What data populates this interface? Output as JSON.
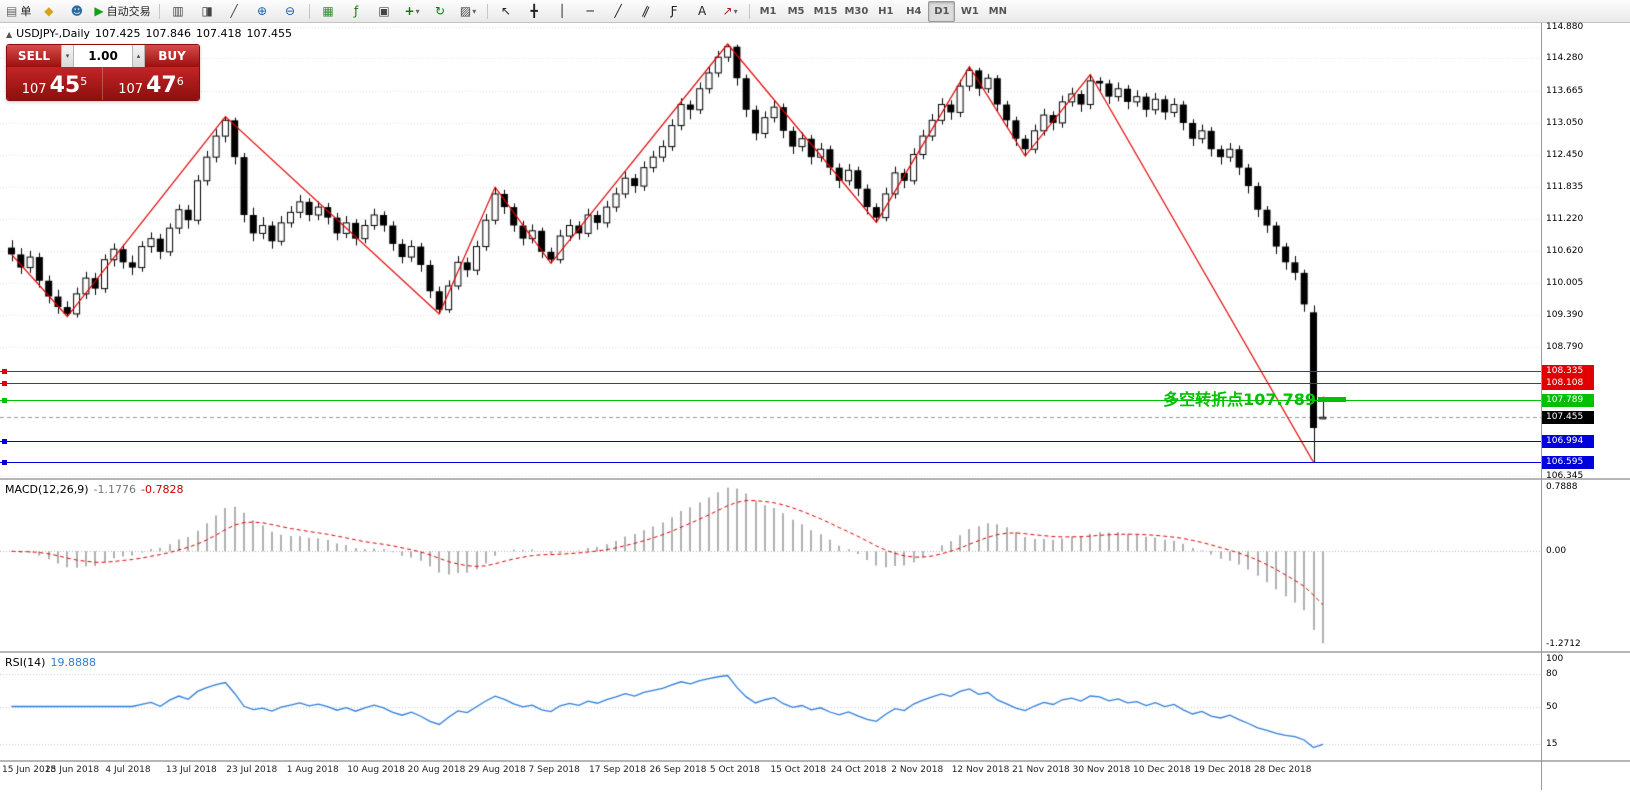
{
  "toolbar": {
    "order_button": {
      "name": "new-order",
      "icon": "document",
      "label": "单"
    },
    "left_icons": [
      {
        "name": "chart-profile",
        "icon": "gold-square"
      },
      {
        "name": "accounts",
        "icon": "blue-person"
      }
    ],
    "autotrading": {
      "name": "autotrading",
      "icon": "green-play",
      "label": "自动交易"
    },
    "chart_buttons": [
      {
        "name": "bar-chart",
        "icon": "bars"
      },
      {
        "name": "candlestick-chart",
        "icon": "candles"
      },
      {
        "name": "line-chart",
        "icon": "line"
      }
    ],
    "zoom_buttons": [
      {
        "name": "zoom-in",
        "icon": "zoom-plus"
      },
      {
        "name": "zoom-out",
        "icon": "zoom-minus"
      }
    ],
    "misc_buttons": [
      {
        "name": "grid",
        "icon": "grid-green"
      },
      {
        "name": "indicators",
        "icon": "function"
      },
      {
        "name": "tile-windows",
        "icon": "tile"
      },
      {
        "name": "new-chart",
        "icon": "plus-chart",
        "dropdown": true
      },
      {
        "name": "auto-scroll",
        "icon": "refresh"
      },
      {
        "name": "templates",
        "icon": "template",
        "dropdown": true
      }
    ],
    "draw_buttons": [
      {
        "name": "cursor",
        "icon": "cursor-arrow"
      },
      {
        "name": "crosshair",
        "icon": "crosshair"
      },
      {
        "name": "vertical-line",
        "icon": "vline"
      },
      {
        "name": "horizontal-line",
        "icon": "hline"
      },
      {
        "name": "trendline",
        "icon": "diag"
      },
      {
        "name": "channel",
        "icon": "channel"
      },
      {
        "name": "fibonacci",
        "icon": "fibo"
      },
      {
        "name": "text-label",
        "icon": "letter-a"
      },
      {
        "name": "arrows",
        "icon": "arrow-ne",
        "dropdown": true
      }
    ],
    "timeframes": [
      "M1",
      "M5",
      "M15",
      "M30",
      "H1",
      "H4",
      "D1",
      "W1",
      "MN"
    ],
    "active_timeframe": "D1"
  },
  "icons_legend": {
    "document": "page glyph",
    "gold-square": "gold diamond",
    "blue-person": "person glyph",
    "green-play": "play triangle",
    "bars": "ohlc bars",
    "candles": "candlesticks",
    "line": "line chart",
    "zoom-plus": "magnifier plus",
    "zoom-minus": "magnifier minus",
    "grid-green": "grid",
    "function": "indicator f",
    "tile": "tile windows",
    "plus-chart": "new chart plus",
    "refresh": "auto scroll",
    "template": "chart template",
    "cursor-arrow": "pointer",
    "crosshair": "crosshair",
    "vline": "vertical line",
    "hline": "horizontal line",
    "diag": "trend line",
    "channel": "equidistant channel",
    "fibo": "fibonacci",
    "letter-a": "text tool",
    "arrow-ne": "arrow objects"
  },
  "symbol_header": {
    "collapse": "▲",
    "symbol": "USDJPY-,Daily",
    "open": "107.425",
    "high": "107.846",
    "low": "107.418",
    "close": "107.455"
  },
  "one_click": {
    "sell_label": "SELL",
    "buy_label": "BUY",
    "volume": "1.00",
    "bid": {
      "big": "107",
      "pips": "45",
      "sup": "5"
    },
    "ask": {
      "big": "107",
      "pips": "47",
      "sup": "6"
    }
  },
  "annotation": {
    "text": "多空转折点107.789",
    "color": "#00c000"
  },
  "price_axis": {
    "labels": [
      "114.880",
      "114.280",
      "113.665",
      "113.050",
      "112.450",
      "111.835",
      "111.220",
      "110.620",
      "110.005",
      "109.390",
      "108.790",
      "106.345"
    ]
  },
  "horizontal_lines": [
    {
      "price": 108.335,
      "color": "#e00000",
      "tag": "108.335"
    },
    {
      "price": 108.108,
      "color": "#e00000",
      "tag": "108.108"
    },
    {
      "price": 107.789,
      "color": "#00c000",
      "tag": "107.789"
    },
    {
      "price": 106.994,
      "color": "#0000dd",
      "tag": "106.994"
    },
    {
      "price": 106.595,
      "color": "#0000dd",
      "tag": "106.595"
    }
  ],
  "current_price_tag": {
    "price": 107.455,
    "label": "107.455",
    "color": "#000000"
  },
  "macd_panel": {
    "title": "MACD(12,26,9)",
    "value_main": "-1.1776",
    "value_signal": "-0.7828",
    "axis_labels": [
      "0.7888",
      "0.00",
      "-1.2712"
    ],
    "fast": 12,
    "slow": 26,
    "signal": 9
  },
  "rsi_panel": {
    "title": "RSI(14)",
    "value": "19.8888",
    "period": 14,
    "axis_labels": [
      100,
      80,
      50,
      15
    ],
    "levels": [
      80,
      50,
      15
    ]
  },
  "dates": [
    "15 Jun 2018",
    "25 Jun 2018",
    "4 Jul 2018",
    "13 Jul 2018",
    "23 Jul 2018",
    "1 Aug 2018",
    "10 Aug 2018",
    "20 Aug 2018",
    "29 Aug 2018",
    "7 Sep 2018",
    "17 Sep 2018",
    "26 Sep 2018",
    "5 Oct 2018",
    "15 Oct 2018",
    "24 Oct 2018",
    "2 Nov 2018",
    "12 Nov 2018",
    "21 Nov 2018",
    "30 Nov 2018",
    "10 Dec 2018",
    "19 Dec 2018",
    "28 Dec 2018"
  ],
  "chart_data": {
    "type": "candlestick",
    "symbol": "USDJPY-",
    "timeframe": "Daily",
    "ylim": [
      106.3,
      114.95
    ],
    "zigzag_pivots": [
      [
        0,
        110.55
      ],
      [
        6,
        109.37
      ],
      [
        23,
        113.17
      ],
      [
        46,
        109.42
      ],
      [
        52,
        111.83
      ],
      [
        58,
        110.38
      ],
      [
        77,
        114.55
      ],
      [
        93,
        111.16
      ],
      [
        103,
        114.12
      ],
      [
        109,
        112.42
      ],
      [
        116,
        113.97
      ],
      [
        140,
        106.6
      ]
    ],
    "candles": [
      [
        110.68,
        110.82,
        110.42,
        110.55
      ],
      [
        110.55,
        110.67,
        110.18,
        110.3
      ],
      [
        110.3,
        110.62,
        110.2,
        110.5
      ],
      [
        110.5,
        110.58,
        109.92,
        110.05
      ],
      [
        110.05,
        110.15,
        109.62,
        109.75
      ],
      [
        109.75,
        109.88,
        109.42,
        109.55
      ],
      [
        109.55,
        109.66,
        109.37,
        109.42
      ],
      [
        109.42,
        109.92,
        109.35,
        109.8
      ],
      [
        109.8,
        110.22,
        109.7,
        110.1
      ],
      [
        110.1,
        110.2,
        109.78,
        109.9
      ],
      [
        109.9,
        110.55,
        109.82,
        110.45
      ],
      [
        110.45,
        110.76,
        110.32,
        110.65
      ],
      [
        110.65,
        110.74,
        110.28,
        110.4
      ],
      [
        110.4,
        110.53,
        110.16,
        110.3
      ],
      [
        110.3,
        110.8,
        110.22,
        110.7
      ],
      [
        110.7,
        110.97,
        110.58,
        110.85
      ],
      [
        110.85,
        110.94,
        110.46,
        110.6
      ],
      [
        110.6,
        111.14,
        110.52,
        111.05
      ],
      [
        111.05,
        111.5,
        110.94,
        111.4
      ],
      [
        111.4,
        111.49,
        111.04,
        111.2
      ],
      [
        111.2,
        112.06,
        111.12,
        111.95
      ],
      [
        111.95,
        112.52,
        111.86,
        112.4
      ],
      [
        112.4,
        112.93,
        112.3,
        112.8
      ],
      [
        112.8,
        113.17,
        112.68,
        113.1
      ],
      [
        113.1,
        113.15,
        112.26,
        112.4
      ],
      [
        112.4,
        112.48,
        111.16,
        111.3
      ],
      [
        111.3,
        111.44,
        110.8,
        110.95
      ],
      [
        110.95,
        111.26,
        110.84,
        111.1
      ],
      [
        111.1,
        111.18,
        110.66,
        110.8
      ],
      [
        110.8,
        111.28,
        110.72,
        111.15
      ],
      [
        111.15,
        111.47,
        111.06,
        111.35
      ],
      [
        111.35,
        111.68,
        111.24,
        111.55
      ],
      [
        111.55,
        111.62,
        111.18,
        111.3
      ],
      [
        111.3,
        111.56,
        111.2,
        111.45
      ],
      [
        111.45,
        111.53,
        111.12,
        111.25
      ],
      [
        111.25,
        111.34,
        110.82,
        110.95
      ],
      [
        110.95,
        111.28,
        110.86,
        111.15
      ],
      [
        111.15,
        111.22,
        110.72,
        110.85
      ],
      [
        110.85,
        111.21,
        110.76,
        111.1
      ],
      [
        111.1,
        111.42,
        111.02,
        111.3
      ],
      [
        111.3,
        111.37,
        110.98,
        111.1
      ],
      [
        111.1,
        111.18,
        110.62,
        110.75
      ],
      [
        110.75,
        110.84,
        110.38,
        110.5
      ],
      [
        110.5,
        110.82,
        110.41,
        110.7
      ],
      [
        110.7,
        110.77,
        110.22,
        110.35
      ],
      [
        110.35,
        110.44,
        109.72,
        109.85
      ],
      [
        109.85,
        109.94,
        109.42,
        109.5
      ],
      [
        109.5,
        110.06,
        109.44,
        109.95
      ],
      [
        109.95,
        110.52,
        109.88,
        110.4
      ],
      [
        110.4,
        110.49,
        110.12,
        110.25
      ],
      [
        110.25,
        110.81,
        110.16,
        110.7
      ],
      [
        110.7,
        111.32,
        110.62,
        111.2
      ],
      [
        111.2,
        111.83,
        111.12,
        111.7
      ],
      [
        111.7,
        111.78,
        111.32,
        111.45
      ],
      [
        111.45,
        111.52,
        110.98,
        111.1
      ],
      [
        111.1,
        111.19,
        110.72,
        110.85
      ],
      [
        110.85,
        111.12,
        110.76,
        111.0
      ],
      [
        111.0,
        111.06,
        110.48,
        110.6
      ],
      [
        110.6,
        110.68,
        110.38,
        110.45
      ],
      [
        110.45,
        111.02,
        110.38,
        110.9
      ],
      [
        110.9,
        111.22,
        110.81,
        111.1
      ],
      [
        111.1,
        111.18,
        110.83,
        110.95
      ],
      [
        110.95,
        111.42,
        110.88,
        111.3
      ],
      [
        111.3,
        111.38,
        111.02,
        111.15
      ],
      [
        111.15,
        111.57,
        111.06,
        111.45
      ],
      [
        111.45,
        111.82,
        111.36,
        111.7
      ],
      [
        111.7,
        112.12,
        111.62,
        112.0
      ],
      [
        112.0,
        112.08,
        111.72,
        111.85
      ],
      [
        111.85,
        112.32,
        111.76,
        112.2
      ],
      [
        112.2,
        112.52,
        112.11,
        112.4
      ],
      [
        112.4,
        112.72,
        112.31,
        112.6
      ],
      [
        112.6,
        113.12,
        112.52,
        113.0
      ],
      [
        113.0,
        113.52,
        112.91,
        113.4
      ],
      [
        113.4,
        113.48,
        113.12,
        113.3
      ],
      [
        113.3,
        113.82,
        113.22,
        113.7
      ],
      [
        113.7,
        114.12,
        113.61,
        114.0
      ],
      [
        114.0,
        114.42,
        113.92,
        114.3
      ],
      [
        114.3,
        114.55,
        114.21,
        114.5
      ],
      [
        114.5,
        114.54,
        113.76,
        113.9
      ],
      [
        113.9,
        113.97,
        113.16,
        113.3
      ],
      [
        113.3,
        113.38,
        112.72,
        112.85
      ],
      [
        112.85,
        113.27,
        112.76,
        113.15
      ],
      [
        113.15,
        113.47,
        113.06,
        113.35
      ],
      [
        113.35,
        113.42,
        112.76,
        112.9
      ],
      [
        112.9,
        112.98,
        112.46,
        112.6
      ],
      [
        112.6,
        112.87,
        112.51,
        112.75
      ],
      [
        112.75,
        112.82,
        112.26,
        112.4
      ],
      [
        112.4,
        112.67,
        112.31,
        112.55
      ],
      [
        112.55,
        112.62,
        112.06,
        112.2
      ],
      [
        112.2,
        112.28,
        111.81,
        111.95
      ],
      [
        111.95,
        112.27,
        111.86,
        112.15
      ],
      [
        112.15,
        112.22,
        111.66,
        111.8
      ],
      [
        111.8,
        111.88,
        111.31,
        111.45
      ],
      [
        111.45,
        111.52,
        111.16,
        111.25
      ],
      [
        111.25,
        111.82,
        111.18,
        111.7
      ],
      [
        111.7,
        112.22,
        111.61,
        112.1
      ],
      [
        112.1,
        112.18,
        111.81,
        111.95
      ],
      [
        111.95,
        112.57,
        111.88,
        112.45
      ],
      [
        112.45,
        112.92,
        112.36,
        112.8
      ],
      [
        112.8,
        113.22,
        112.71,
        113.1
      ],
      [
        113.1,
        113.52,
        113.02,
        113.4
      ],
      [
        113.4,
        113.48,
        113.11,
        113.25
      ],
      [
        113.25,
        113.87,
        113.16,
        113.75
      ],
      [
        113.75,
        114.12,
        113.66,
        114.05
      ],
      [
        114.05,
        114.1,
        113.56,
        113.7
      ],
      [
        113.7,
        113.98,
        113.62,
        113.9
      ],
      [
        113.9,
        113.96,
        113.26,
        113.4
      ],
      [
        113.4,
        113.47,
        112.96,
        113.1
      ],
      [
        113.1,
        113.17,
        112.61,
        112.75
      ],
      [
        112.75,
        112.82,
        112.42,
        112.55
      ],
      [
        112.55,
        113.02,
        112.47,
        112.9
      ],
      [
        112.9,
        113.32,
        112.81,
        113.2
      ],
      [
        113.2,
        113.27,
        112.91,
        113.05
      ],
      [
        113.05,
        113.57,
        112.96,
        113.45
      ],
      [
        113.45,
        113.72,
        113.36,
        113.6
      ],
      [
        113.6,
        113.67,
        113.26,
        113.4
      ],
      [
        113.4,
        113.97,
        113.31,
        113.85
      ],
      [
        113.85,
        113.92,
        113.66,
        113.8
      ],
      [
        113.8,
        113.87,
        113.41,
        113.55
      ],
      [
        113.55,
        113.82,
        113.46,
        113.7
      ],
      [
        113.7,
        113.77,
        113.31,
        113.45
      ],
      [
        113.45,
        113.67,
        113.36,
        113.55
      ],
      [
        113.55,
        113.62,
        113.16,
        113.3
      ],
      [
        113.3,
        113.62,
        113.21,
        113.5
      ],
      [
        113.5,
        113.57,
        113.11,
        113.25
      ],
      [
        113.25,
        113.52,
        113.16,
        113.4
      ],
      [
        113.4,
        113.47,
        112.91,
        113.05
      ],
      [
        113.05,
        113.12,
        112.61,
        112.75
      ],
      [
        112.75,
        113.02,
        112.66,
        112.9
      ],
      [
        112.9,
        112.97,
        112.41,
        112.55
      ],
      [
        112.55,
        112.62,
        112.26,
        112.4
      ],
      [
        112.4,
        112.67,
        112.31,
        112.55
      ],
      [
        112.55,
        112.62,
        112.06,
        112.2
      ],
      [
        112.2,
        112.27,
        111.71,
        111.85
      ],
      [
        111.85,
        111.92,
        111.26,
        111.4
      ],
      [
        111.4,
        111.47,
        110.96,
        111.1
      ],
      [
        111.1,
        111.17,
        110.56,
        110.7
      ],
      [
        110.7,
        110.77,
        110.26,
        110.4
      ],
      [
        110.4,
        110.52,
        110.06,
        110.2
      ],
      [
        110.2,
        110.26,
        109.46,
        109.6
      ],
      [
        109.45,
        109.58,
        106.6,
        107.25
      ],
      [
        107.425,
        107.846,
        107.418,
        107.455
      ]
    ]
  }
}
